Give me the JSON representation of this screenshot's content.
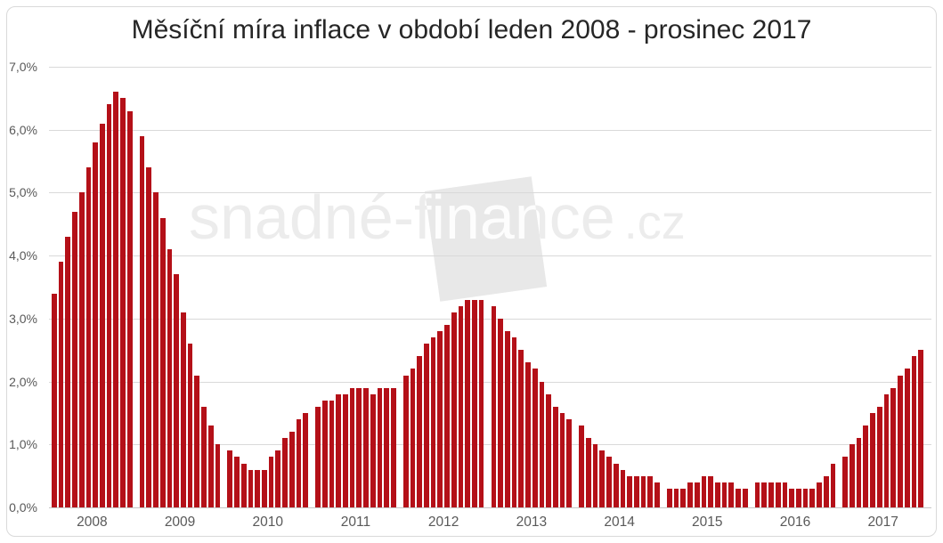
{
  "title": "Měsíční míra inflace v období leden 2008 - prosinec 2017",
  "watermark": {
    "text": "snadné-finance",
    "suffix": ".cz"
  },
  "y_axis": {
    "tick_labels": [
      "7,0%",
      "6,0%",
      "5,0%",
      "4,0%",
      "3,0%",
      "2,0%",
      "1,0%",
      "0,0%"
    ]
  },
  "x_axis": {
    "tick_labels": [
      "2008",
      "2009",
      "2010",
      "2011",
      "2012",
      "2013",
      "2014",
      "2015",
      "2016",
      "2017"
    ]
  },
  "chart_data": {
    "type": "bar",
    "title": "Měsíční míra inflace v období leden 2008 - prosinec 2017",
    "unit": "percent",
    "ylabel": "",
    "xlabel": "",
    "ylim": [
      0,
      7
    ],
    "y_tick_step": 1,
    "grid": "horizontal",
    "legend": "none",
    "bars_per_category": 12,
    "categories": [
      "2008",
      "2009",
      "2010",
      "2011",
      "2012",
      "2013",
      "2014",
      "2015",
      "2016",
      "2017"
    ],
    "series": [
      {
        "year": "2008",
        "monthly_values": [
          3.4,
          3.9,
          4.3,
          4.7,
          5.0,
          5.4,
          5.8,
          6.1,
          6.4,
          6.6,
          6.5,
          6.3
        ]
      },
      {
        "year": "2009",
        "monthly_values": [
          5.9,
          5.4,
          5.0,
          4.6,
          4.1,
          3.7,
          3.1,
          2.6,
          2.1,
          1.6,
          1.3,
          1.0
        ]
      },
      {
        "year": "2010",
        "monthly_values": [
          0.9,
          0.8,
          0.7,
          0.6,
          0.6,
          0.6,
          0.8,
          0.9,
          1.1,
          1.2,
          1.4,
          1.5
        ]
      },
      {
        "year": "2011",
        "monthly_values": [
          1.6,
          1.7,
          1.7,
          1.8,
          1.8,
          1.9,
          1.9,
          1.9,
          1.8,
          1.9,
          1.9,
          1.9
        ]
      },
      {
        "year": "2012",
        "monthly_values": [
          2.1,
          2.2,
          2.4,
          2.6,
          2.7,
          2.8,
          2.9,
          3.1,
          3.2,
          3.3,
          3.3,
          3.3
        ]
      },
      {
        "year": "2013",
        "monthly_values": [
          3.2,
          3.0,
          2.8,
          2.7,
          2.5,
          2.3,
          2.2,
          2.0,
          1.8,
          1.6,
          1.5,
          1.4
        ]
      },
      {
        "year": "2014",
        "monthly_values": [
          1.3,
          1.1,
          1.0,
          0.9,
          0.8,
          0.7,
          0.6,
          0.5,
          0.5,
          0.5,
          0.5,
          0.4
        ]
      },
      {
        "year": "2015",
        "monthly_values": [
          0.3,
          0.3,
          0.3,
          0.4,
          0.4,
          0.5,
          0.5,
          0.4,
          0.4,
          0.4,
          0.3,
          0.3
        ]
      },
      {
        "year": "2016",
        "monthly_values": [
          0.4,
          0.4,
          0.4,
          0.4,
          0.4,
          0.3,
          0.3,
          0.3,
          0.3,
          0.4,
          0.5,
          0.7
        ]
      },
      {
        "year": "2017",
        "monthly_values": [
          0.8,
          1.0,
          1.1,
          1.3,
          1.5,
          1.6,
          1.8,
          1.9,
          2.1,
          2.2,
          2.4,
          2.5
        ]
      }
    ]
  },
  "colors": {
    "bar": "#b41018",
    "gridline": "#d9d9d9",
    "baseline": "#c6c6c6",
    "axis_text": "#595959",
    "title_text": "#262626",
    "watermark_text": "#ececec",
    "watermark_text_knockout": "#fdfdfd",
    "watermark_box": "#e8e8e8",
    "frame_border": "#d9d9d9",
    "background": "#ffffff"
  }
}
